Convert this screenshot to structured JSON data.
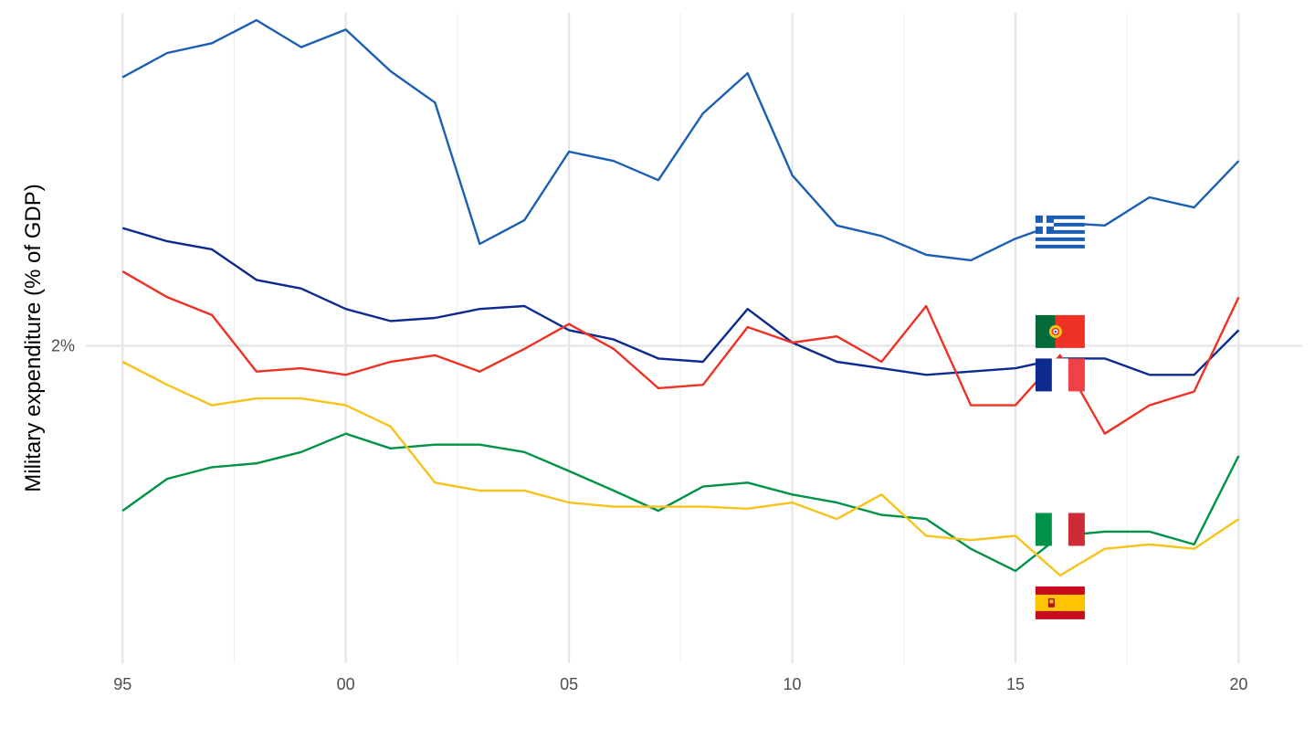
{
  "chart_data": {
    "type": "line",
    "title": "",
    "xlabel": "",
    "ylabel": "Military expenditure (% of GDP)",
    "x": [
      1995,
      1996,
      1997,
      1998,
      1999,
      2000,
      2001,
      2002,
      2003,
      2004,
      2005,
      2006,
      2007,
      2008,
      2009,
      2010,
      2011,
      2012,
      2013,
      2014,
      2015,
      2016,
      2017,
      2018,
      2019,
      2020
    ],
    "x_ticks": [
      {
        "value": 1995,
        "label": "95"
      },
      {
        "value": 2000,
        "label": "00"
      },
      {
        "value": 2005,
        "label": "05"
      },
      {
        "value": 2010,
        "label": "10"
      },
      {
        "value": 2015,
        "label": "15"
      },
      {
        "value": 2020,
        "label": "20"
      }
    ],
    "y_ticks": [
      {
        "value": 2,
        "label": "2%"
      }
    ],
    "xlim": [
      1994.3,
      2021.3
    ],
    "ylim": [
      1.22,
      3.36
    ],
    "y_scale": "log",
    "grid": true,
    "legend": "flags at 2016",
    "series": [
      {
        "country": "Greece",
        "flag": "greece-flag",
        "color": "#1a5fb4",
        "values": [
          3.06,
          3.18,
          3.23,
          3.35,
          3.21,
          3.3,
          3.09,
          2.94,
          2.35,
          2.44,
          2.72,
          2.68,
          2.6,
          2.89,
          3.08,
          2.62,
          2.42,
          2.38,
          2.31,
          2.29,
          2.37,
          2.43,
          2.42,
          2.53,
          2.49,
          2.68
        ]
      },
      {
        "country": "France",
        "flag": "france-flag",
        "color": "#0c2a8f",
        "values": [
          2.41,
          2.36,
          2.33,
          2.22,
          2.19,
          2.12,
          2.08,
          2.09,
          2.12,
          2.13,
          2.05,
          2.02,
          1.96,
          1.95,
          2.12,
          2.01,
          1.95,
          1.93,
          1.91,
          1.92,
          1.93,
          1.96,
          1.96,
          1.91,
          1.91,
          2.05
        ]
      },
      {
        "country": "Portugal",
        "flag": "portugal-flag",
        "color": "#ee3124",
        "values": [
          2.25,
          2.16,
          2.1,
          1.92,
          1.93,
          1.91,
          1.95,
          1.97,
          1.92,
          1.99,
          2.07,
          1.99,
          1.87,
          1.88,
          2.06,
          2.01,
          2.03,
          1.95,
          2.13,
          1.82,
          1.82,
          1.97,
          1.74,
          1.82,
          1.86,
          2.16
        ]
      },
      {
        "country": "Italy",
        "flag": "italy-flag",
        "color": "#009246",
        "values": [
          1.54,
          1.62,
          1.65,
          1.66,
          1.69,
          1.74,
          1.7,
          1.71,
          1.71,
          1.69,
          1.64,
          1.59,
          1.54,
          1.6,
          1.61,
          1.58,
          1.56,
          1.53,
          1.52,
          1.45,
          1.4,
          1.48,
          1.49,
          1.49,
          1.46,
          1.68
        ]
      },
      {
        "country": "Spain",
        "flag": "spain-flag",
        "color": "#f6c31a",
        "values": [
          1.95,
          1.88,
          1.82,
          1.84,
          1.84,
          1.82,
          1.76,
          1.61,
          1.59,
          1.59,
          1.56,
          1.55,
          1.55,
          1.55,
          1.545,
          1.56,
          1.52,
          1.58,
          1.48,
          1.47,
          1.48,
          1.39,
          1.45,
          1.46,
          1.45,
          1.52
        ]
      }
    ]
  }
}
